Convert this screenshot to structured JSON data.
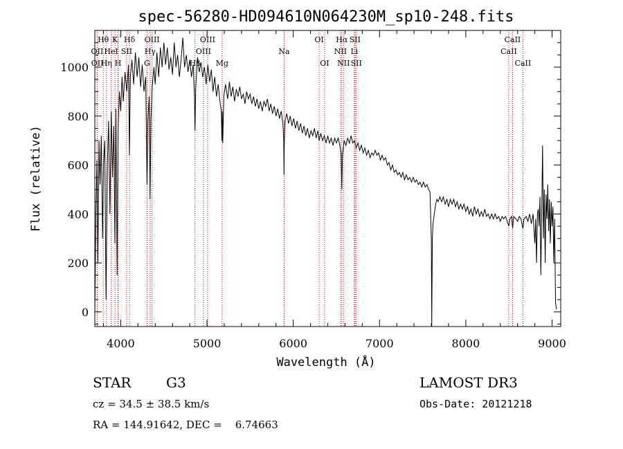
{
  "chart_data": {
    "type": "line",
    "title": "spec-56280-HD094610N064230M_sp10-248.fits",
    "xlabel": "Wavelength (Å)",
    "ylabel": "Flux (relative)",
    "xlim": [
      3700,
      9100
    ],
    "ylim": [
      -60,
      1150
    ],
    "x_ticks": [
      4000,
      5000,
      6000,
      7000,
      8000,
      9000
    ],
    "y_ticks": [
      0,
      200,
      400,
      600,
      800,
      1000
    ],
    "x_tick_labels": [
      "4000",
      "5000",
      "6000",
      "7000",
      "8000",
      "9000"
    ],
    "y_tick_labels": [
      "0",
      "200",
      "400",
      "600",
      "800",
      "1000"
    ],
    "spectrum": {
      "name": "flux",
      "points": [
        [
          3700,
          0
        ],
        [
          3712,
          400
        ],
        [
          3725,
          620
        ],
        [
          3735,
          200
        ],
        [
          3748,
          700
        ],
        [
          3760,
          520
        ],
        [
          3775,
          720
        ],
        [
          3790,
          300
        ],
        [
          3800,
          600
        ],
        [
          3815,
          700
        ],
        [
          3830,
          50
        ],
        [
          3845,
          600
        ],
        [
          3860,
          780
        ],
        [
          3875,
          400
        ],
        [
          3890,
          820
        ],
        [
          3905,
          550
        ],
        [
          3920,
          760
        ],
        [
          3933,
          280
        ],
        [
          3945,
          830
        ],
        [
          3958,
          150
        ],
        [
          3970,
          760
        ],
        [
          3985,
          900
        ],
        [
          4000,
          820
        ],
        [
          4015,
          960
        ],
        [
          4030,
          860
        ],
        [
          4050,
          980
        ],
        [
          4070,
          900
        ],
        [
          4090,
          1010
        ],
        [
          4101,
          640
        ],
        [
          4112,
          960
        ],
        [
          4130,
          1030
        ],
        [
          4150,
          930
        ],
        [
          4170,
          1060
        ],
        [
          4190,
          960
        ],
        [
          4210,
          1040
        ],
        [
          4230,
          920
        ],
        [
          4250,
          1010
        ],
        [
          4270,
          900
        ],
        [
          4290,
          960
        ],
        [
          4305,
          520
        ],
        [
          4315,
          780
        ],
        [
          4330,
          880
        ],
        [
          4340,
          460
        ],
        [
          4350,
          780
        ],
        [
          4365,
          920
        ],
        [
          4385,
          1000
        ],
        [
          4400,
          930
        ],
        [
          4420,
          1060
        ],
        [
          4440,
          960
        ],
        [
          4460,
          1080
        ],
        [
          4480,
          1000
        ],
        [
          4500,
          1100
        ],
        [
          4520,
          1010
        ],
        [
          4540,
          1080
        ],
        [
          4560,
          990
        ],
        [
          4580,
          1040
        ],
        [
          4600,
          970
        ],
        [
          4620,
          1100
        ],
        [
          4640,
          1000
        ],
        [
          4660,
          1050
        ],
        [
          4680,
          960
        ],
        [
          4700,
          1030
        ],
        [
          4720,
          1120
        ],
        [
          4740,
          1000
        ],
        [
          4760,
          1050
        ],
        [
          4780,
          980
        ],
        [
          4800,
          1030
        ],
        [
          4820,
          960
        ],
        [
          4840,
          1010
        ],
        [
          4855,
          880
        ],
        [
          4861,
          740
        ],
        [
          4870,
          920
        ],
        [
          4890,
          1040
        ],
        [
          4910,
          980
        ],
        [
          4930,
          1020
        ],
        [
          4950,
          960
        ],
        [
          4970,
          1000
        ],
        [
          4990,
          930
        ],
        [
          5010,
          1010
        ],
        [
          5030,
          940
        ],
        [
          5050,
          990
        ],
        [
          5070,
          900
        ],
        [
          5090,
          960
        ],
        [
          5110,
          880
        ],
        [
          5130,
          930
        ],
        [
          5150,
          860
        ],
        [
          5167,
          820
        ],
        [
          5172,
          700
        ],
        [
          5178,
          820
        ],
        [
          5183,
          690
        ],
        [
          5195,
          880
        ],
        [
          5215,
          930
        ],
        [
          5240,
          870
        ],
        [
          5260,
          940
        ],
        [
          5280,
          880
        ],
        [
          5300,
          920
        ],
        [
          5320,
          860
        ],
        [
          5340,
          910
        ],
        [
          5360,
          880
        ],
        [
          5380,
          920
        ],
        [
          5400,
          870
        ],
        [
          5420,
          890
        ],
        [
          5440,
          850
        ],
        [
          5460,
          900
        ],
        [
          5480,
          870
        ],
        [
          5500,
          890
        ],
        [
          5520,
          850
        ],
        [
          5540,
          880
        ],
        [
          5560,
          840
        ],
        [
          5580,
          870
        ],
        [
          5600,
          830
        ],
        [
          5620,
          860
        ],
        [
          5640,
          820
        ],
        [
          5660,
          860
        ],
        [
          5680,
          840
        ],
        [
          5700,
          870
        ],
        [
          5720,
          820
        ],
        [
          5740,
          850
        ],
        [
          5760,
          810
        ],
        [
          5780,
          840
        ],
        [
          5800,
          800
        ],
        [
          5820,
          830
        ],
        [
          5840,
          790
        ],
        [
          5860,
          820
        ],
        [
          5880,
          770
        ],
        [
          5890,
          700
        ],
        [
          5893,
          560
        ],
        [
          5896,
          690
        ],
        [
          5905,
          780
        ],
        [
          5925,
          810
        ],
        [
          5945,
          770
        ],
        [
          5965,
          800
        ],
        [
          5985,
          760
        ],
        [
          6005,
          790
        ],
        [
          6025,
          750
        ],
        [
          6045,
          780
        ],
        [
          6065,
          740
        ],
        [
          6085,
          770
        ],
        [
          6105,
          730
        ],
        [
          6125,
          760
        ],
        [
          6145,
          720
        ],
        [
          6165,
          750
        ],
        [
          6185,
          710
        ],
        [
          6205,
          740
        ],
        [
          6225,
          720
        ],
        [
          6245,
          750
        ],
        [
          6265,
          710
        ],
        [
          6285,
          740
        ],
        [
          6300,
          700
        ],
        [
          6320,
          730
        ],
        [
          6340,
          700
        ],
        [
          6360,
          720
        ],
        [
          6380,
          690
        ],
        [
          6400,
          720
        ],
        [
          6420,
          690
        ],
        [
          6440,
          710
        ],
        [
          6460,
          680
        ],
        [
          6480,
          710
        ],
        [
          6500,
          690
        ],
        [
          6520,
          710
        ],
        [
          6540,
          680
        ],
        [
          6555,
          650
        ],
        [
          6563,
          500
        ],
        [
          6570,
          640
        ],
        [
          6590,
          700
        ],
        [
          6610,
          680
        ],
        [
          6630,
          710
        ],
        [
          6650,
          690
        ],
        [
          6670,
          720
        ],
        [
          6690,
          690
        ],
        [
          6710,
          700
        ],
        [
          6730,
          670
        ],
        [
          6750,
          690
        ],
        [
          6770,
          660
        ],
        [
          6790,
          680
        ],
        [
          6810,
          650
        ],
        [
          6830,
          670
        ],
        [
          6850,
          640
        ],
        [
          6870,
          660
        ],
        [
          6890,
          630
        ],
        [
          6910,
          650
        ],
        [
          6930,
          640
        ],
        [
          6950,
          660
        ],
        [
          6970,
          640
        ],
        [
          6990,
          650
        ],
        [
          7010,
          620
        ],
        [
          7030,
          640
        ],
        [
          7050,
          620
        ],
        [
          7070,
          630
        ],
        [
          7090,
          600
        ],
        [
          7110,
          610
        ],
        [
          7130,
          580
        ],
        [
          7150,
          600
        ],
        [
          7170,
          570
        ],
        [
          7190,
          580
        ],
        [
          7210,
          560
        ],
        [
          7230,
          570
        ],
        [
          7250,
          550
        ],
        [
          7270,
          570
        ],
        [
          7290,
          540
        ],
        [
          7310,
          560
        ],
        [
          7330,
          540
        ],
        [
          7350,
          550
        ],
        [
          7370,
          530
        ],
        [
          7390,
          550
        ],
        [
          7410,
          530
        ],
        [
          7430,
          540
        ],
        [
          7450,
          520
        ],
        [
          7470,
          530
        ],
        [
          7490,
          510
        ],
        [
          7510,
          530
        ],
        [
          7530,
          510
        ],
        [
          7550,
          520
        ],
        [
          7570,
          500
        ],
        [
          7585,
          490
        ],
        [
          7600,
          300
        ],
        [
          7605,
          -60
        ],
        [
          7612,
          300
        ],
        [
          7620,
          360
        ],
        [
          7635,
          400
        ],
        [
          7650,
          440
        ],
        [
          7665,
          460
        ],
        [
          7680,
          450
        ],
        [
          7700,
          470
        ],
        [
          7720,
          450
        ],
        [
          7740,
          470
        ],
        [
          7760,
          440
        ],
        [
          7780,
          460
        ],
        [
          7800,
          430
        ],
        [
          7820,
          460
        ],
        [
          7840,
          440
        ],
        [
          7860,
          460
        ],
        [
          7880,
          430
        ],
        [
          7900,
          450
        ],
        [
          7920,
          420
        ],
        [
          7940,
          440
        ],
        [
          7960,
          420
        ],
        [
          7980,
          440
        ],
        [
          8000,
          410
        ],
        [
          8020,
          430
        ],
        [
          8040,
          400
        ],
        [
          8060,
          420
        ],
        [
          8080,
          390
        ],
        [
          8100,
          430
        ],
        [
          8120,
          400
        ],
        [
          8140,
          420
        ],
        [
          8160,
          390
        ],
        [
          8180,
          410
        ],
        [
          8200,
          390
        ],
        [
          8220,
          420
        ],
        [
          8240,
          390
        ],
        [
          8260,
          400
        ],
        [
          8280,
          380
        ],
        [
          8300,
          400
        ],
        [
          8320,
          380
        ],
        [
          8340,
          400
        ],
        [
          8360,
          380
        ],
        [
          8380,
          390
        ],
        [
          8400,
          370
        ],
        [
          8420,
          390
        ],
        [
          8440,
          380
        ],
        [
          8460,
          390
        ],
        [
          8480,
          370
        ],
        [
          8498,
          350
        ],
        [
          8510,
          380
        ],
        [
          8530,
          390
        ],
        [
          8542,
          340
        ],
        [
          8555,
          390
        ],
        [
          8580,
          380
        ],
        [
          8600,
          370
        ],
        [
          8620,
          390
        ],
        [
          8640,
          380
        ],
        [
          8662,
          340
        ],
        [
          8675,
          380
        ],
        [
          8700,
          390
        ],
        [
          8720,
          370
        ],
        [
          8740,
          400
        ],
        [
          8760,
          360
        ],
        [
          8780,
          400
        ],
        [
          8800,
          280
        ],
        [
          8810,
          380
        ],
        [
          8820,
          200
        ],
        [
          8830,
          400
        ],
        [
          8840,
          420
        ],
        [
          8850,
          350
        ],
        [
          8860,
          470
        ],
        [
          8870,
          150
        ],
        [
          8880,
          410
        ],
        [
          8890,
          680
        ],
        [
          8900,
          300
        ],
        [
          8910,
          500
        ],
        [
          8920,
          200
        ],
        [
          8930,
          480
        ],
        [
          8940,
          380
        ],
        [
          8950,
          520
        ],
        [
          8960,
          330
        ],
        [
          8970,
          460
        ],
        [
          8980,
          280
        ],
        [
          8990,
          450
        ],
        [
          9000,
          350
        ],
        [
          9010,
          430
        ],
        [
          9020,
          200
        ],
        [
          9030,
          380
        ],
        [
          9040,
          40
        ],
        [
          9050,
          10
        ]
      ]
    },
    "line_markers": [
      {
        "label": "Hθ",
        "x": 3798,
        "row": 0
      },
      {
        "label": "OII",
        "x": 3727,
        "row": 1
      },
      {
        "label": "OII",
        "x": 3729,
        "row": 2
      },
      {
        "label": "Hη",
        "x": 3835,
        "row": 2
      },
      {
        "label": "HeI",
        "x": 3889,
        "row": 1
      },
      {
        "label": "K",
        "x": 3934,
        "row": 0
      },
      {
        "label": "H",
        "x": 3969,
        "row": 2
      },
      {
        "label": "Hδ",
        "x": 4102,
        "row": 0
      },
      {
        "label": "SII",
        "x": 4069,
        "row": 1
      },
      {
        "label": "OIII",
        "x": 4363,
        "row": 0
      },
      {
        "label": "Hγ",
        "x": 4341,
        "row": 1
      },
      {
        "label": "G",
        "x": 4305,
        "row": 2
      },
      {
        "label": "OIII",
        "x": 5007,
        "row": 0
      },
      {
        "label": "OIII",
        "x": 4959,
        "row": 1
      },
      {
        "label": "Hβ",
        "x": 4861,
        "row": 2
      },
      {
        "label": "Mg",
        "x": 5175,
        "row": 2
      },
      {
        "label": "Na",
        "x": 5894,
        "row": 1
      },
      {
        "label": "OI",
        "x": 6300,
        "row": 0
      },
      {
        "label": "OI",
        "x": 6363,
        "row": 2
      },
      {
        "label": "Hα",
        "x": 6563,
        "row": 0
      },
      {
        "label": "NII",
        "x": 6548,
        "row": 1
      },
      {
        "label": "NII",
        "x": 6583,
        "row": 2
      },
      {
        "label": "SII",
        "x": 6716,
        "row": 0
      },
      {
        "label": "Li",
        "x": 6708,
        "row": 1
      },
      {
        "label": "SII",
        "x": 6731,
        "row": 2
      },
      {
        "label": "CaII",
        "x": 8542,
        "row": 0
      },
      {
        "label": "CaII",
        "x": 8498,
        "row": 1
      },
      {
        "label": "CaII",
        "x": 8662,
        "row": 2
      }
    ]
  },
  "info": {
    "object_class": "STAR",
    "subclass": "G3",
    "survey": "LAMOST DR3",
    "redshift": "cz = 34.5 ± 38.5 km/s",
    "obs_date": "Obs-Date: 20121218",
    "coords": "RA = 144.91642, DEC =    6.74663"
  },
  "colors": {
    "spectrum": "#000000",
    "markers": "#c00000",
    "axis": "#000000"
  }
}
